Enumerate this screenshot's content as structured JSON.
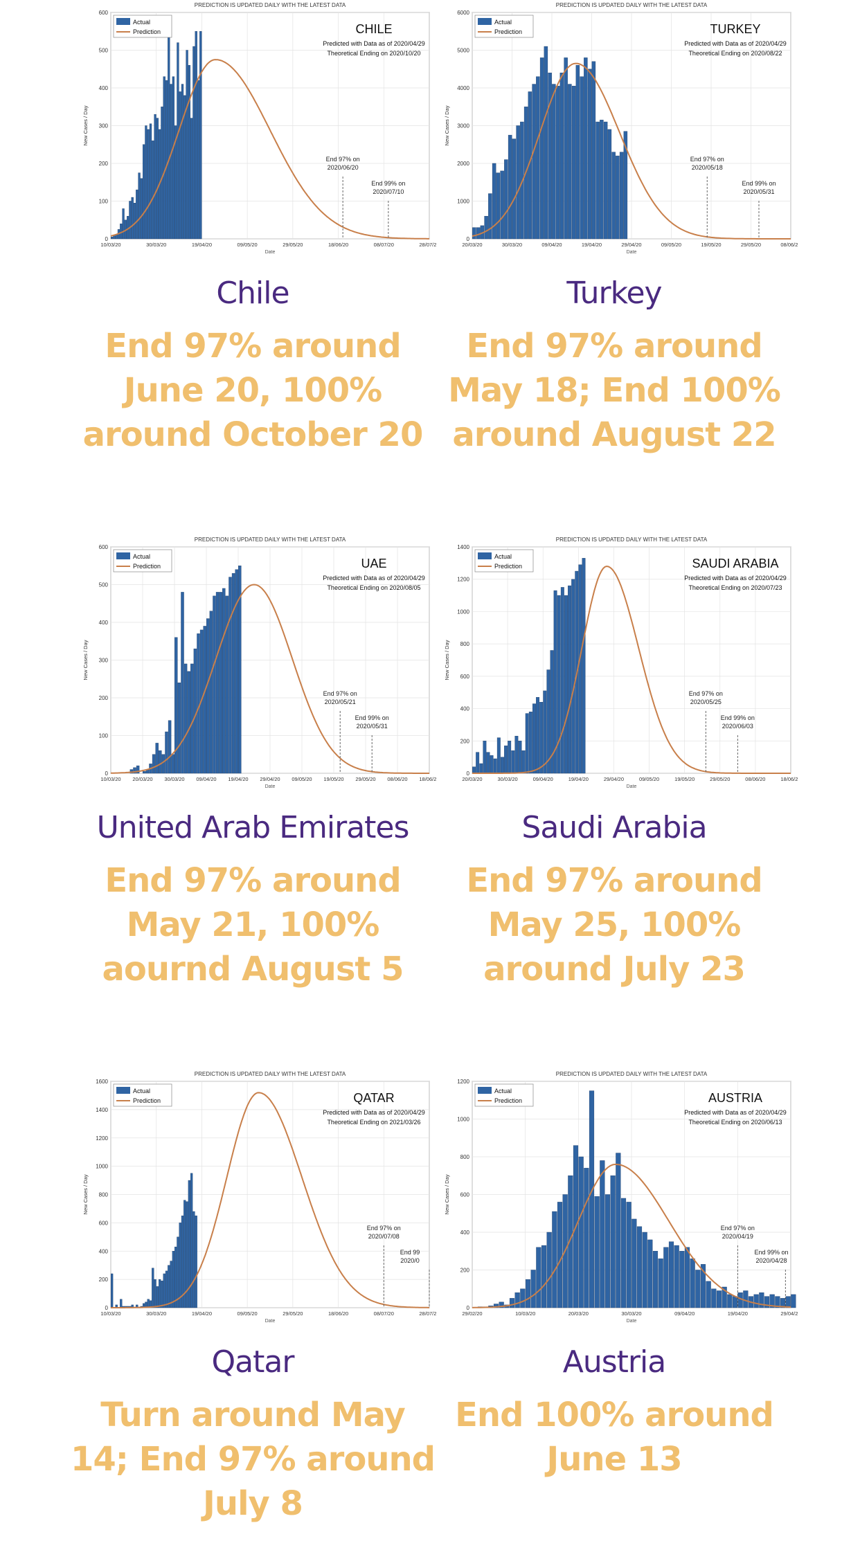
{
  "header_text": "PREDICTION IS UPDATED DAILY WITH THE LATEST DATA",
  "legend": {
    "actual": "Actual",
    "prediction": "Prediction"
  },
  "xlabel": "Date",
  "ylabel": "New Cases / Day",
  "colors": {
    "bars": "#2f64a3",
    "curve": "#c87f4a",
    "country": "#4a2a80",
    "summary": "#f0bf6e"
  },
  "cards": [
    {
      "country": "Chile",
      "summary": "End 97% around June 20, 100% around October 20"
    },
    {
      "country": "Turkey",
      "summary": "End 97% around May 18; End 100% around August 22"
    },
    {
      "country": "United Arab Emirates",
      "summary": "End 97% around May 21, 100% aournd August 5"
    },
    {
      "country": "Saudi Arabia",
      "summary": "End 97% around May 25, 100% around July 23"
    },
    {
      "country": "Qatar",
      "summary": "Turn around May 14; End 97% around July 8"
    },
    {
      "country": "Austria",
      "summary": "End 100% around June 13"
    }
  ],
  "chart_data": [
    {
      "type": "bar",
      "title": "CHILE",
      "info_lines": [
        "Predicted with Data as of 2020/04/29",
        "Theoretical Ending on 2020/10/20"
      ],
      "ylim": [
        0,
        600
      ],
      "yticks": [
        0,
        100,
        200,
        300,
        400,
        500,
        600
      ],
      "xticks": [
        "10/03/20",
        "30/03/20",
        "19/04/20",
        "09/05/20",
        "29/05/20",
        "18/06/20",
        "08/07/20",
        "28/07/20"
      ],
      "xlim_days": [
        0,
        140
      ],
      "bar_values": [
        5,
        8,
        12,
        25,
        40,
        80,
        50,
        60,
        100,
        110,
        95,
        130,
        175,
        160,
        250,
        300,
        290,
        305,
        260,
        330,
        320,
        290,
        350,
        430,
        420,
        540,
        410,
        430,
        300,
        520,
        390,
        410,
        380,
        500,
        460,
        320,
        510,
        550,
        420,
        550
      ],
      "curve": {
        "peak": 475,
        "peak_day": 46,
        "sigma_left": 16,
        "sigma_right": 24
      },
      "markers": [
        {
          "day": 102,
          "label": "End 97% on",
          "date": "2020/06/20"
        },
        {
          "day": 122,
          "label": "End 99% on",
          "date": "2020/07/10"
        }
      ]
    },
    {
      "type": "bar",
      "title": "TURKEY",
      "info_lines": [
        "Predicted with Data as of 2020/04/29",
        "Theoretical Ending on 2020/08/22"
      ],
      "ylim": [
        0,
        6000
      ],
      "yticks": [
        0,
        1000,
        2000,
        3000,
        4000,
        5000,
        6000
      ],
      "xticks": [
        "20/03/20",
        "30/03/20",
        "09/04/20",
        "19/04/20",
        "29/04/20",
        "09/05/20",
        "19/05/20",
        "29/05/20",
        "08/06/20"
      ],
      "xlim_days": [
        0,
        80
      ],
      "bar_values": [
        300,
        300,
        350,
        600,
        1200,
        2000,
        1750,
        1800,
        2100,
        2750,
        2650,
        3000,
        3100,
        3500,
        3900,
        4100,
        4300,
        4800,
        5100,
        4400,
        4100,
        4050,
        4400,
        4800,
        4100,
        4050,
        4600,
        4300,
        4800,
        4500,
        4700,
        3100,
        3150,
        3100,
        2900,
        2300,
        2200,
        2300,
        2850
      ],
      "curve": {
        "peak": 4650,
        "peak_day": 26,
        "sigma_left": 9,
        "sigma_right": 11
      },
      "markers": [
        {
          "day": 59,
          "label": "End 97% on",
          "date": "2020/05/18"
        },
        {
          "day": 72,
          "label": "End 99% on",
          "date": "2020/05/31"
        }
      ]
    },
    {
      "type": "bar",
      "title": "UAE",
      "info_lines": [
        "Predicted with Data as of 2020/04/29",
        "Theoretical Ending on 2020/08/05"
      ],
      "ylim": [
        0,
        600
      ],
      "yticks": [
        0,
        100,
        200,
        300,
        400,
        500,
        600
      ],
      "xticks": [
        "10/03/20",
        "20/03/20",
        "30/03/20",
        "09/04/20",
        "19/04/20",
        "29/04/20",
        "09/05/20",
        "19/05/20",
        "29/05/20",
        "08/06/20",
        "18/06/20"
      ],
      "xlim_days": [
        0,
        100
      ],
      "bar_values": [
        0,
        0,
        0,
        0,
        0,
        0,
        10,
        15,
        20,
        0,
        5,
        10,
        25,
        50,
        80,
        60,
        50,
        110,
        140,
        50,
        360,
        240,
        480,
        290,
        270,
        290,
        330,
        370,
        380,
        390,
        410,
        430,
        470,
        480,
        480,
        490,
        470,
        520,
        530,
        540,
        550
      ],
      "curve": {
        "peak": 500,
        "peak_day": 45,
        "sigma_left": 12,
        "sigma_right": 12
      },
      "markers": [
        {
          "day": 72,
          "label": "End 97% on",
          "date": "2020/05/21"
        },
        {
          "day": 82,
          "label": "End 99% on",
          "date": "2020/05/31"
        }
      ]
    },
    {
      "type": "bar",
      "title": "SAUDI ARABIA",
      "info_lines": [
        "Predicted with Data as of 2020/04/29",
        "Theoretical Ending on 2020/07/23"
      ],
      "ylim": [
        0,
        1400
      ],
      "yticks": [
        0,
        200,
        400,
        600,
        800,
        1000,
        1200,
        1400
      ],
      "xticks": [
        "20/03/20",
        "30/03/20",
        "09/04/20",
        "19/04/20",
        "29/04/20",
        "09/05/20",
        "19/05/20",
        "29/05/20",
        "08/06/20",
        "18/06/20"
      ],
      "xlim_days": [
        0,
        90
      ],
      "bar_values": [
        40,
        130,
        60,
        200,
        130,
        110,
        90,
        220,
        100,
        170,
        200,
        140,
        230,
        200,
        140,
        370,
        380,
        430,
        470,
        440,
        510,
        640,
        760,
        1130,
        1100,
        1150,
        1100,
        1160,
        1200,
        1250,
        1290,
        1330
      ],
      "curve": {
        "peak": 1280,
        "peak_day": 38,
        "sigma_left": 7,
        "sigma_right": 9
      },
      "markers": [
        {
          "day": 66,
          "label": "End 97% on",
          "date": "2020/05/25"
        },
        {
          "day": 75,
          "label": "End 99% on",
          "date": "2020/06/03"
        }
      ]
    },
    {
      "type": "bar",
      "title": "QATAR",
      "info_lines": [
        "Predicted with Data as of 2020/04/29",
        "Theoretical Ending on 2021/03/26"
      ],
      "ylim": [
        0,
        1600
      ],
      "yticks": [
        0,
        200,
        400,
        600,
        800,
        1000,
        1200,
        1400,
        1600
      ],
      "xticks": [
        "10/03/20",
        "30/03/20",
        "19/04/20",
        "09/05/20",
        "29/05/20",
        "18/06/20",
        "08/07/20",
        "28/07/20"
      ],
      "xlim_days": [
        0,
        140
      ],
      "bar_values": [
        240,
        0,
        20,
        0,
        60,
        10,
        10,
        10,
        10,
        20,
        5,
        20,
        5,
        10,
        30,
        40,
        60,
        50,
        280,
        200,
        150,
        200,
        190,
        240,
        260,
        300,
        330,
        400,
        430,
        500,
        600,
        650,
        760,
        750,
        900,
        950,
        680,
        650
      ],
      "curve": {
        "peak": 1520,
        "peak_day": 65,
        "sigma_left": 14,
        "sigma_right": 19
      },
      "markers": [
        {
          "day": 120,
          "label": "End 97% on",
          "date": "2020/07/08"
        },
        {
          "day": 140,
          "label": "End 99",
          "date": "2020/0"
        }
      ]
    },
    {
      "type": "bar",
      "title": "AUSTRIA",
      "info_lines": [
        "Predicted with Data as of 2020/04/29",
        "Theoretical Ending on 2020/06/13"
      ],
      "ylim": [
        0,
        1200
      ],
      "yticks": [
        0,
        200,
        400,
        600,
        800,
        1000,
        1200
      ],
      "xticks": [
        "29/02/20",
        "10/03/20",
        "20/03/20",
        "30/03/20",
        "09/04/20",
        "19/04/20",
        "29/04/20"
      ],
      "xlim_days": [
        0,
        60
      ],
      "bar_values": [
        0,
        5,
        5,
        10,
        20,
        30,
        15,
        50,
        80,
        100,
        150,
        200,
        320,
        330,
        400,
        510,
        560,
        600,
        700,
        860,
        800,
        740,
        1150,
        590,
        780,
        600,
        700,
        820,
        580,
        560,
        470,
        430,
        400,
        360,
        300,
        260,
        320,
        350,
        330,
        300,
        320,
        260,
        200,
        230,
        140,
        100,
        90,
        110,
        70,
        60,
        80,
        90,
        60,
        70,
        80,
        60,
        70,
        60,
        50,
        60,
        70
      ],
      "curve": {
        "peak": 760,
        "peak_day": 27,
        "sigma_left": 7,
        "sigma_right": 10
      },
      "markers": [
        {
          "day": 50,
          "label": "End 97% on",
          "date": "2020/04/19"
        },
        {
          "day": 59,
          "label": "End 99% on",
          "date": "2020/04/28"
        }
      ]
    }
  ]
}
